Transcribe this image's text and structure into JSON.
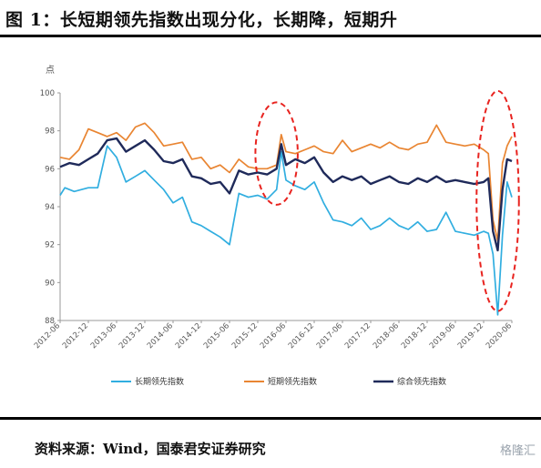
{
  "title": "图 1：长短期领先指数出现分化，长期降，短期升",
  "source": "资料来源：Wind，国泰君安证券研究",
  "watermark": "格隆汇",
  "chart_data": {
    "type": "line",
    "ylabel": "点",
    "ylim": [
      88,
      100
    ],
    "yticks": [
      88,
      90,
      92,
      94,
      96,
      98,
      100
    ],
    "xlim": [
      "2012-06",
      "2020-06"
    ],
    "xticks": [
      "2012-06",
      "2012-12",
      "2013-06",
      "2013-12",
      "2014-06",
      "2014-12",
      "2015-06",
      "2015-12",
      "2016-06",
      "2016-12",
      "2017-06",
      "2017-12",
      "2018-06",
      "2018-12",
      "2019-06",
      "2019-12",
      "2020-06"
    ],
    "legend_position": "bottom",
    "grid": false,
    "series": [
      {
        "name": "长期领先指数",
        "color": "#31aee0",
        "points": [
          [
            "2012-06",
            94.6
          ],
          [
            "2012-07",
            95.0
          ],
          [
            "2012-09",
            94.8
          ],
          [
            "2012-12",
            95.0
          ],
          [
            "2013-02",
            95.0
          ],
          [
            "2013-04",
            97.2
          ],
          [
            "2013-06",
            96.6
          ],
          [
            "2013-08",
            95.3
          ],
          [
            "2013-10",
            95.6
          ],
          [
            "2013-12",
            95.9
          ],
          [
            "2014-02",
            95.4
          ],
          [
            "2014-04",
            94.9
          ],
          [
            "2014-06",
            94.2
          ],
          [
            "2014-08",
            94.5
          ],
          [
            "2014-10",
            93.2
          ],
          [
            "2014-12",
            93.0
          ],
          [
            "2015-02",
            92.7
          ],
          [
            "2015-04",
            92.4
          ],
          [
            "2015-06",
            92.0
          ],
          [
            "2015-08",
            94.7
          ],
          [
            "2015-10",
            94.5
          ],
          [
            "2015-12",
            94.6
          ],
          [
            "2016-02",
            94.4
          ],
          [
            "2016-04",
            94.9
          ],
          [
            "2016-05",
            96.9
          ],
          [
            "2016-06",
            95.4
          ],
          [
            "2016-08",
            95.1
          ],
          [
            "2016-10",
            94.9
          ],
          [
            "2016-12",
            95.3
          ],
          [
            "2017-02",
            94.2
          ],
          [
            "2017-04",
            93.3
          ],
          [
            "2017-06",
            93.2
          ],
          [
            "2017-08",
            93.0
          ],
          [
            "2017-10",
            93.4
          ],
          [
            "2017-12",
            92.8
          ],
          [
            "2018-02",
            93.0
          ],
          [
            "2018-04",
            93.4
          ],
          [
            "2018-06",
            93.0
          ],
          [
            "2018-08",
            92.8
          ],
          [
            "2018-10",
            93.2
          ],
          [
            "2018-12",
            92.7
          ],
          [
            "2019-02",
            92.8
          ],
          [
            "2019-04",
            93.7
          ],
          [
            "2019-06",
            92.7
          ],
          [
            "2019-08",
            92.6
          ],
          [
            "2019-10",
            92.5
          ],
          [
            "2019-12",
            92.7
          ],
          [
            "2020-01",
            92.6
          ],
          [
            "2020-02",
            91.5
          ],
          [
            "2020-03",
            88.3
          ],
          [
            "2020-04",
            92.5
          ],
          [
            "2020-05",
            95.3
          ],
          [
            "2020-06",
            94.5
          ]
        ]
      },
      {
        "name": "短期领先指数",
        "color": "#e98532",
        "points": [
          [
            "2012-06",
            96.6
          ],
          [
            "2012-08",
            96.5
          ],
          [
            "2012-10",
            97.0
          ],
          [
            "2012-12",
            98.1
          ],
          [
            "2013-02",
            97.9
          ],
          [
            "2013-04",
            97.7
          ],
          [
            "2013-06",
            97.9
          ],
          [
            "2013-08",
            97.5
          ],
          [
            "2013-10",
            98.2
          ],
          [
            "2013-12",
            98.4
          ],
          [
            "2014-02",
            97.9
          ],
          [
            "2014-04",
            97.2
          ],
          [
            "2014-06",
            97.3
          ],
          [
            "2014-08",
            97.4
          ],
          [
            "2014-10",
            96.5
          ],
          [
            "2014-12",
            96.6
          ],
          [
            "2015-02",
            96.0
          ],
          [
            "2015-04",
            96.2
          ],
          [
            "2015-06",
            95.8
          ],
          [
            "2015-08",
            96.5
          ],
          [
            "2015-10",
            96.1
          ],
          [
            "2015-12",
            96.0
          ],
          [
            "2016-02",
            96.0
          ],
          [
            "2016-04",
            96.2
          ],
          [
            "2016-05",
            97.8
          ],
          [
            "2016-06",
            96.9
          ],
          [
            "2016-08",
            96.8
          ],
          [
            "2016-10",
            97.0
          ],
          [
            "2016-12",
            97.2
          ],
          [
            "2017-02",
            96.9
          ],
          [
            "2017-04",
            96.8
          ],
          [
            "2017-06",
            97.5
          ],
          [
            "2017-08",
            96.9
          ],
          [
            "2017-10",
            97.1
          ],
          [
            "2017-12",
            97.3
          ],
          [
            "2018-02",
            97.1
          ],
          [
            "2018-04",
            97.4
          ],
          [
            "2018-06",
            97.1
          ],
          [
            "2018-08",
            97.0
          ],
          [
            "2018-10",
            97.3
          ],
          [
            "2018-12",
            97.4
          ],
          [
            "2019-02",
            98.3
          ],
          [
            "2019-04",
            97.4
          ],
          [
            "2019-06",
            97.3
          ],
          [
            "2019-08",
            97.2
          ],
          [
            "2019-10",
            97.3
          ],
          [
            "2019-12",
            97.0
          ],
          [
            "2020-01",
            96.8
          ],
          [
            "2020-02",
            93.3
          ],
          [
            "2020-03",
            92.2
          ],
          [
            "2020-04",
            96.3
          ],
          [
            "2020-05",
            97.2
          ],
          [
            "2020-06",
            97.7
          ]
        ]
      },
      {
        "name": "综合领先指数",
        "color": "#1f2a5a",
        "points": [
          [
            "2012-06",
            96.1
          ],
          [
            "2012-08",
            96.3
          ],
          [
            "2012-10",
            96.2
          ],
          [
            "2012-12",
            96.5
          ],
          [
            "2013-02",
            96.8
          ],
          [
            "2013-04",
            97.5
          ],
          [
            "2013-06",
            97.6
          ],
          [
            "2013-08",
            96.9
          ],
          [
            "2013-10",
            97.2
          ],
          [
            "2013-12",
            97.5
          ],
          [
            "2014-02",
            97.0
          ],
          [
            "2014-04",
            96.4
          ],
          [
            "2014-06",
            96.3
          ],
          [
            "2014-08",
            96.5
          ],
          [
            "2014-10",
            95.6
          ],
          [
            "2014-12",
            95.5
          ],
          [
            "2015-02",
            95.2
          ],
          [
            "2015-04",
            95.3
          ],
          [
            "2015-06",
            94.7
          ],
          [
            "2015-08",
            95.9
          ],
          [
            "2015-10",
            95.7
          ],
          [
            "2015-12",
            95.8
          ],
          [
            "2016-02",
            95.7
          ],
          [
            "2016-04",
            96.0
          ],
          [
            "2016-05",
            97.3
          ],
          [
            "2016-06",
            96.2
          ],
          [
            "2016-08",
            96.5
          ],
          [
            "2016-10",
            96.3
          ],
          [
            "2016-12",
            96.6
          ],
          [
            "2017-02",
            95.8
          ],
          [
            "2017-04",
            95.3
          ],
          [
            "2017-06",
            95.6
          ],
          [
            "2017-08",
            95.4
          ],
          [
            "2017-10",
            95.6
          ],
          [
            "2017-12",
            95.2
          ],
          [
            "2018-02",
            95.4
          ],
          [
            "2018-04",
            95.6
          ],
          [
            "2018-06",
            95.3
          ],
          [
            "2018-08",
            95.2
          ],
          [
            "2018-10",
            95.5
          ],
          [
            "2018-12",
            95.3
          ],
          [
            "2019-02",
            95.6
          ],
          [
            "2019-04",
            95.3
          ],
          [
            "2019-06",
            95.4
          ],
          [
            "2019-08",
            95.3
          ],
          [
            "2019-10",
            95.2
          ],
          [
            "2019-12",
            95.3
          ],
          [
            "2020-01",
            95.5
          ],
          [
            "2020-02",
            92.7
          ],
          [
            "2020-03",
            91.7
          ],
          [
            "2020-04",
            94.9
          ],
          [
            "2020-05",
            96.5
          ],
          [
            "2020-06",
            96.4
          ]
        ]
      }
    ],
    "annotations": [
      {
        "type": "dashed-ellipse",
        "color": "#e8231f",
        "center": [
          "2016-04",
          96.8
        ],
        "rx_months": 4.5,
        "ry_value": 2.7
      },
      {
        "type": "dashed-ellipse",
        "color": "#e8231f",
        "center": [
          "2020-03",
          94.3
        ],
        "rx_months": 4.5,
        "ry_value": 5.8
      }
    ]
  }
}
